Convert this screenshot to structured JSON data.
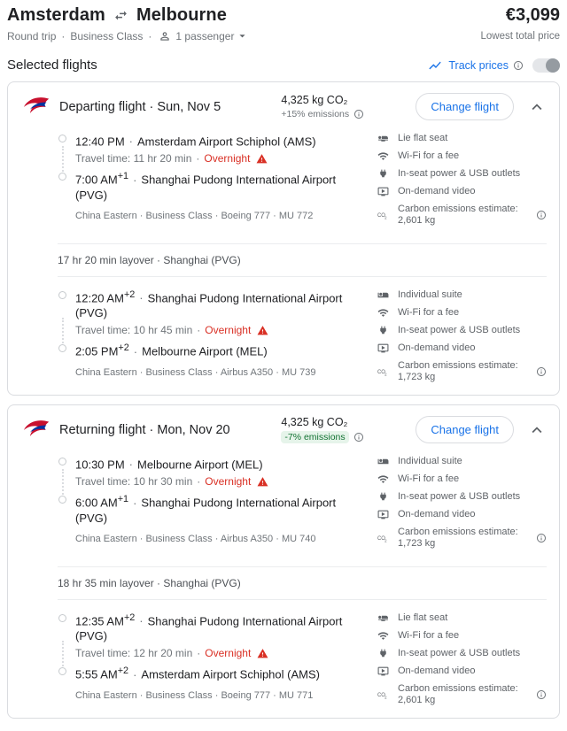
{
  "sep": "·",
  "header": {
    "origin": "Amsterdam",
    "destination": "Melbourne",
    "price": "€3,099",
    "price_caption": "Lowest total price",
    "trip_type": "Round trip",
    "cabin": "Business Class",
    "passengers": "1 passenger"
  },
  "section": {
    "title": "Selected flights",
    "track_prices": "Track prices"
  },
  "cards": [
    {
      "title": "Departing flight · Sun, Nov 5",
      "co2": "4,325 kg CO₂",
      "emissions": "+15% emissions",
      "change_label": "Change flight",
      "layover": "17 hr 20 min layover · Shanghai (PVG)",
      "segments": [
        {
          "dep_time": "12:40 PM",
          "dep_sup": "",
          "dep_airport": "Amsterdam Airport Schiphol (AMS)",
          "travel": "Travel time: 11 hr 20 min",
          "overnight": "Overnight",
          "arr_time": "7:00 AM",
          "arr_sup": "+1",
          "arr_airport": "Shanghai Pudong International Airport (PVG)",
          "meta": "China Eastern · Business Class · Boeing 777 · MU 772",
          "amenities": [
            {
              "icon": "lie-flat-seat-icon",
              "label": "Lie flat seat"
            },
            {
              "icon": "wifi-icon",
              "label": "Wi-Fi for a fee"
            },
            {
              "icon": "power-icon",
              "label": "In-seat power & USB outlets"
            },
            {
              "icon": "on-demand-video-icon",
              "label": "On-demand video"
            },
            {
              "icon": "co2-icon",
              "label": "Carbon emissions estimate: 2,601 kg"
            }
          ]
        },
        {
          "dep_time": "12:20 AM",
          "dep_sup": "+2",
          "dep_airport": "Shanghai Pudong International Airport (PVG)",
          "travel": "Travel time: 10 hr 45 min",
          "overnight": "Overnight",
          "arr_time": "2:05 PM",
          "arr_sup": "+2",
          "arr_airport": "Melbourne Airport (MEL)",
          "meta": "China Eastern · Business Class · Airbus A350 · MU 739",
          "amenities": [
            {
              "icon": "individual-suite-icon",
              "label": "Individual suite"
            },
            {
              "icon": "wifi-icon",
              "label": "Wi-Fi for a fee"
            },
            {
              "icon": "power-icon",
              "label": "In-seat power & USB outlets"
            },
            {
              "icon": "on-demand-video-icon",
              "label": "On-demand video"
            },
            {
              "icon": "co2-icon",
              "label": "Carbon emissions estimate: 1,723 kg"
            }
          ]
        }
      ]
    },
    {
      "title": "Returning flight · Mon, Nov 20",
      "co2": "4,325 kg CO₂",
      "emissions": "-7% emissions",
      "change_label": "Change flight",
      "layover": "18 hr 35 min layover · Shanghai (PVG)",
      "segments": [
        {
          "dep_time": "10:30 PM",
          "dep_sup": "",
          "dep_airport": "Melbourne Airport (MEL)",
          "travel": "Travel time: 10 hr 30 min",
          "overnight": "Overnight",
          "arr_time": "6:00 AM",
          "arr_sup": "+1",
          "arr_airport": "Shanghai Pudong International Airport (PVG)",
          "meta": "China Eastern · Business Class · Airbus A350 · MU 740",
          "amenities": [
            {
              "icon": "individual-suite-icon",
              "label": "Individual suite"
            },
            {
              "icon": "wifi-icon",
              "label": "Wi-Fi for a fee"
            },
            {
              "icon": "power-icon",
              "label": "In-seat power & USB outlets"
            },
            {
              "icon": "on-demand-video-icon",
              "label": "On-demand video"
            },
            {
              "icon": "co2-icon",
              "label": "Carbon emissions estimate: 1,723 kg"
            }
          ]
        },
        {
          "dep_time": "12:35 AM",
          "dep_sup": "+2",
          "dep_airport": "Shanghai Pudong International Airport (PVG)",
          "travel": "Travel time: 12 hr 20 min",
          "overnight": "Overnight",
          "arr_time": "5:55 AM",
          "arr_sup": "+2",
          "arr_airport": "Amsterdam Airport Schiphol (AMS)",
          "meta": "China Eastern · Business Class · Boeing 777 · MU 771",
          "amenities": [
            {
              "icon": "lie-flat-seat-icon",
              "label": "Lie flat seat"
            },
            {
              "icon": "wifi-icon",
              "label": "Wi-Fi for a fee"
            },
            {
              "icon": "power-icon",
              "label": "In-seat power & USB outlets"
            },
            {
              "icon": "on-demand-video-icon",
              "label": "On-demand video"
            },
            {
              "icon": "co2-icon",
              "label": "Carbon emissions estimate: 2,601 kg"
            }
          ]
        }
      ]
    }
  ]
}
